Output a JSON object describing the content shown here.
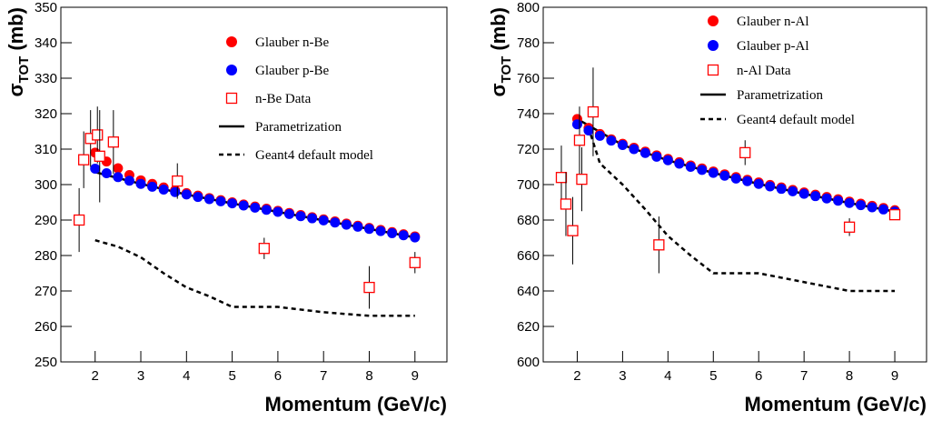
{
  "chart_data": [
    {
      "type": "scatter",
      "x_label": "Momentum (GeV/c)",
      "y_label": {
        "symbol": "σ",
        "subscript": "TOT",
        "unit": "(mb)"
      },
      "xlim": [
        1.25,
        9.7
      ],
      "ylim": [
        250,
        350
      ],
      "xticks": [
        2,
        3,
        4,
        5,
        6,
        7,
        8,
        9
      ],
      "yticks": [
        250,
        260,
        270,
        280,
        290,
        300,
        310,
        320,
        330,
        340,
        350
      ],
      "series": [
        {
          "name": "Glauber n-Be",
          "color": "#ff0000",
          "marker": "circle",
          "x": [
            2,
            2.25,
            2.5,
            2.75,
            3,
            3.25,
            3.5,
            3.75,
            4,
            4.25,
            4.5,
            4.75,
            5,
            5.25,
            5.5,
            5.75,
            6,
            6.25,
            6.5,
            6.75,
            7,
            7.25,
            7.5,
            7.75,
            8,
            8.25,
            8.5,
            8.75,
            9
          ],
          "values": [
            309,
            306.5,
            304.6,
            302.7,
            301.2,
            300.2,
            299.2,
            298.4,
            297.6,
            296.9,
            296.2,
            295.6,
            295.0,
            294.4,
            293.8,
            293.2,
            292.6,
            292.0,
            291.4,
            290.8,
            290.2,
            289.6,
            289.0,
            288.4,
            287.8,
            287.2,
            286.6,
            286.0,
            285.4
          ]
        },
        {
          "name": "Glauber p-Be",
          "color": "#0000ff",
          "marker": "circle",
          "x": [
            2,
            2.25,
            2.5,
            2.75,
            3,
            3.25,
            3.5,
            3.75,
            4,
            4.25,
            4.5,
            4.75,
            5,
            5.25,
            5.5,
            5.75,
            6,
            6.25,
            6.5,
            6.75,
            7,
            7.25,
            7.5,
            7.75,
            8,
            8.25,
            8.5,
            8.75,
            9
          ],
          "values": [
            304.5,
            303.2,
            302.1,
            301.1,
            300.2,
            299.4,
            298.6,
            297.9,
            297.2,
            296.5,
            295.9,
            295.3,
            294.7,
            294.1,
            293.5,
            292.9,
            292.3,
            291.7,
            291.1,
            290.5,
            289.9,
            289.3,
            288.7,
            288.1,
            287.5,
            286.9,
            286.3,
            285.7,
            285.1
          ]
        },
        {
          "name": "n-Be Data",
          "color": "#ff0000",
          "marker": "open-square",
          "x": [
            1.65,
            1.75,
            1.9,
            2.05,
            2.1,
            2.4,
            3.8,
            5.7,
            8.0,
            9.0
          ],
          "values": [
            290,
            307,
            313,
            314,
            308,
            312,
            301,
            282,
            271,
            278
          ],
          "errors": [
            9,
            8,
            8,
            8,
            13,
            9,
            5,
            3,
            6,
            3
          ]
        },
        {
          "name": "Parametrization",
          "color": "#000000",
          "line": "solid",
          "x": [
            2,
            3,
            4,
            5,
            6,
            7,
            8,
            9
          ],
          "values": [
            303.5,
            300.2,
            297.2,
            294.7,
            292.3,
            289.9,
            287.5,
            285.1
          ]
        },
        {
          "name": "Geant4 default model",
          "color": "#000000",
          "line": "dashed",
          "x": [
            2,
            2.5,
            3,
            3.5,
            4,
            4.5,
            5,
            6,
            7,
            8,
            9
          ],
          "values": [
            284.3,
            282.5,
            279.5,
            275,
            271,
            268.5,
            265.5,
            265.5,
            264,
            263,
            263
          ]
        }
      ]
    },
    {
      "type": "scatter",
      "x_label": "Momentum (GeV/c)",
      "y_label": {
        "symbol": "σ",
        "subscript": "TOT",
        "unit": "(mb)"
      },
      "xlim": [
        1.25,
        9.7
      ],
      "ylim": [
        600,
        800
      ],
      "xticks": [
        2,
        3,
        4,
        5,
        6,
        7,
        8,
        9
      ],
      "yticks": [
        600,
        620,
        640,
        660,
        680,
        700,
        720,
        740,
        760,
        780,
        800
      ],
      "series": [
        {
          "name": "Glauber n-Al",
          "color": "#ff0000",
          "marker": "circle",
          "x": [
            2,
            2.25,
            2.5,
            2.75,
            3,
            3.25,
            3.5,
            3.75,
            4,
            4.25,
            4.5,
            4.75,
            5,
            5.25,
            5.5,
            5.75,
            6,
            6.25,
            6.5,
            6.75,
            7,
            7.25,
            7.5,
            7.75,
            8,
            8.25,
            8.5,
            8.75,
            9
          ],
          "values": [
            737,
            732,
            728.5,
            725.5,
            723,
            720.8,
            718.6,
            716.5,
            714.5,
            712.6,
            710.8,
            709.1,
            707.4,
            705.8,
            704.2,
            702.7,
            701.2,
            699.8,
            698.4,
            697,
            695.6,
            694.3,
            693,
            691.7,
            690.4,
            689.2,
            688,
            686.8,
            685.6
          ]
        },
        {
          "name": "Glauber p-Al",
          "color": "#0000ff",
          "marker": "circle",
          "x": [
            2,
            2.25,
            2.5,
            2.75,
            3,
            3.25,
            3.5,
            3.75,
            4,
            4.25,
            4.5,
            4.75,
            5,
            5.25,
            5.5,
            5.75,
            6,
            6.25,
            6.5,
            6.75,
            7,
            7.25,
            7.5,
            7.75,
            8,
            8.25,
            8.5,
            8.75,
            9
          ],
          "values": [
            734,
            730.5,
            727.5,
            724.8,
            722.3,
            720,
            717.8,
            715.7,
            713.7,
            711.8,
            710,
            708.3,
            706.6,
            705,
            703.4,
            701.9,
            700.4,
            699,
            697.6,
            696.2,
            694.8,
            693.5,
            692.2,
            690.9,
            689.6,
            688.4,
            687.2,
            686,
            684.8
          ]
        },
        {
          "name": "n-Al Data",
          "color": "#ff0000",
          "marker": "open-square",
          "x": [
            1.65,
            1.75,
            1.9,
            2.05,
            2.1,
            2.35,
            3.8,
            5.7,
            8.0,
            9.0
          ],
          "values": [
            704,
            689,
            674,
            725,
            703,
            741,
            666,
            718,
            676,
            683
          ],
          "errors": [
            18,
            18,
            19,
            19,
            18,
            25,
            16,
            7,
            5,
            3
          ]
        },
        {
          "name": "Parametrization",
          "color": "#000000",
          "line": "solid",
          "x": [
            2,
            3,
            4,
            5,
            6,
            7,
            8,
            9
          ],
          "values": [
            737,
            722.3,
            713.7,
            706.6,
            700.4,
            694.8,
            689.6,
            684.8
          ]
        },
        {
          "name": "Geant4 default model",
          "color": "#000000",
          "line": "dashed",
          "x": [
            2.3,
            2.5,
            3,
            3.5,
            4,
            4.5,
            5,
            6,
            7,
            8,
            9
          ],
          "values": [
            728,
            712,
            700,
            686,
            671,
            660,
            650,
            650,
            645,
            640,
            640
          ]
        }
      ]
    }
  ]
}
